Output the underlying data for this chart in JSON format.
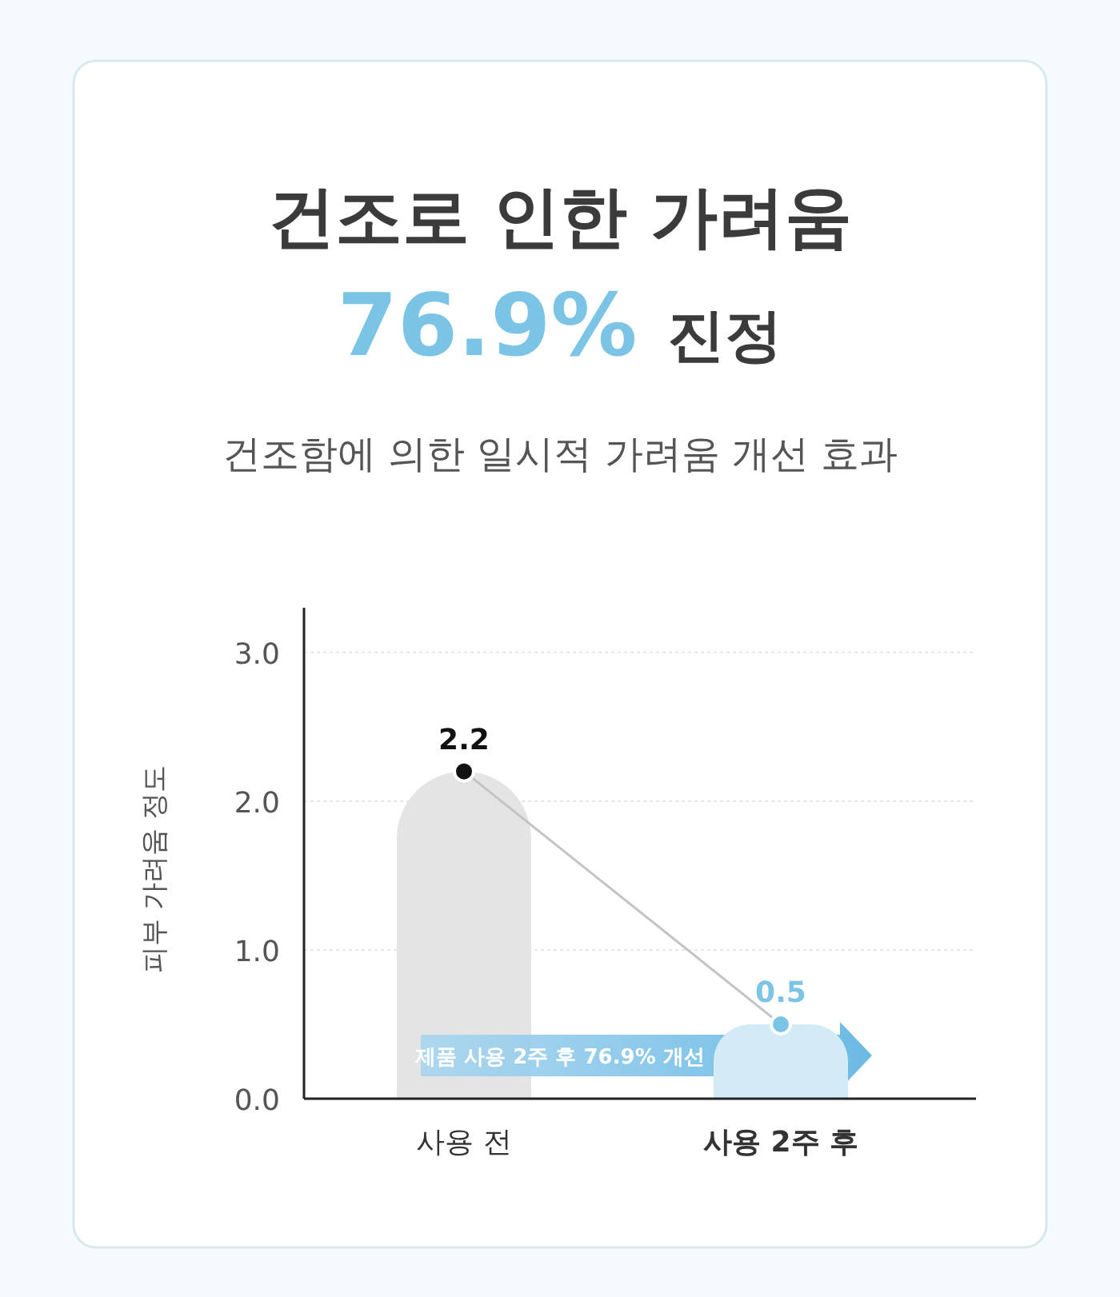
{
  "chart_data": {
    "type": "bar",
    "title": "건조로 인한 가려움",
    "subtitle": "건조함에 의한 일시적 가려움 개선 효과",
    "ylabel": "피부 가려움 정도",
    "categories": [
      "사용 전",
      "사용 2주 후"
    ],
    "series": [
      {
        "colors": [
          "#e4e4e4",
          "#d3ebf7"
        ],
        "values": [
          2.2,
          0.5
        ]
      },
      {
        "type": "line",
        "color": "#c4c4c4",
        "colors": [
          "#111111",
          "#7cc4e6"
        ],
        "marker": "circle",
        "values": [
          2.2,
          0.5
        ],
        "value_labels": [
          "2.2",
          "0.5"
        ]
      }
    ],
    "ylim": [
      0,
      3.3
    ],
    "yticks": [
      {
        "value": 0,
        "label": "0.0"
      },
      {
        "value": 1,
        "label": "1.0"
      },
      {
        "value": 2,
        "label": "2.0"
      },
      {
        "value": 3,
        "label": "3.0"
      }
    ],
    "grid": "y",
    "annotations": [
      "76.9% 진정",
      "제품 사용 2주 후 76.9% 개선"
    ]
  }
}
